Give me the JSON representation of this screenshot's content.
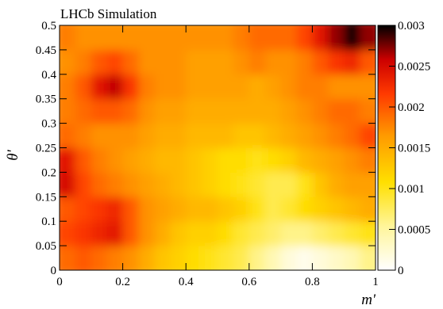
{
  "chart_data": {
    "type": "heatmap",
    "title": "LHCb Simulation",
    "xlabel": "m'",
    "ylabel": "θ'",
    "xlim": [
      0,
      1
    ],
    "ylim": [
      0,
      0.5
    ],
    "x_ticks": [
      "0",
      "0.2",
      "0.4",
      "0.6",
      "0.8",
      "1"
    ],
    "y_ticks": [
      "0",
      "0.05",
      "0.1",
      "0.15",
      "0.2",
      "0.25",
      "0.3",
      "0.35",
      "0.4",
      "0.45",
      "0.5"
    ],
    "colorbar": {
      "range": [
        0,
        0.003
      ],
      "ticks": [
        "0",
        "0.0005",
        "0.001",
        "0.0015",
        "0.002",
        "0.0025",
        "0.003"
      ]
    },
    "grid": {
      "x": [
        0.025,
        0.075,
        0.125,
        0.175,
        0.225,
        0.275,
        0.325,
        0.375,
        0.425,
        0.475,
        0.525,
        0.575,
        0.625,
        0.675,
        0.725,
        0.775,
        0.825,
        0.875,
        0.925,
        0.975
      ],
      "y": [
        0.025,
        0.075,
        0.125,
        0.175,
        0.225,
        0.275,
        0.325,
        0.375,
        0.425,
        0.475
      ],
      "z": [
        [
          0.0019,
          0.002,
          0.0019,
          0.0018,
          0.0017,
          0.0015,
          0.0013,
          0.0012,
          0.0011,
          0.001,
          0.0009,
          0.0008,
          0.0006,
          0.0004,
          0.0002,
          0.0001,
          0.0002,
          0.0003,
          0.0004,
          0.0006
        ],
        [
          0.0021,
          0.0022,
          0.0023,
          0.0024,
          0.002,
          0.0017,
          0.0015,
          0.0013,
          0.0012,
          0.0012,
          0.0011,
          0.0009,
          0.0008,
          0.0007,
          0.0006,
          0.0006,
          0.0007,
          0.0008,
          0.0009,
          0.001
        ],
        [
          0.002,
          0.0021,
          0.0022,
          0.0023,
          0.002,
          0.0017,
          0.0016,
          0.0015,
          0.0014,
          0.0014,
          0.0013,
          0.0012,
          0.001,
          0.0008,
          0.0009,
          0.0011,
          0.0012,
          0.0013,
          0.0014,
          0.0015
        ],
        [
          0.0025,
          0.0021,
          0.0019,
          0.0018,
          0.0017,
          0.0016,
          0.0015,
          0.0014,
          0.0013,
          0.0012,
          0.0011,
          0.001,
          0.0009,
          0.0008,
          0.0008,
          0.001,
          0.0013,
          0.0015,
          0.0016,
          0.0016
        ],
        [
          0.0024,
          0.002,
          0.0018,
          0.0017,
          0.0016,
          0.0015,
          0.0014,
          0.0014,
          0.0013,
          0.0012,
          0.0011,
          0.0011,
          0.001,
          0.0011,
          0.0012,
          0.0014,
          0.0015,
          0.0016,
          0.0017,
          0.0018
        ],
        [
          0.0019,
          0.0018,
          0.0017,
          0.0017,
          0.0017,
          0.0016,
          0.0015,
          0.0015,
          0.0014,
          0.0014,
          0.0014,
          0.0013,
          0.0013,
          0.0014,
          0.0015,
          0.0016,
          0.0017,
          0.0018,
          0.0019,
          0.0021
        ],
        [
          0.0018,
          0.0019,
          0.002,
          0.002,
          0.0019,
          0.0017,
          0.0016,
          0.0016,
          0.0015,
          0.0015,
          0.0015,
          0.0015,
          0.0015,
          0.0015,
          0.0016,
          0.0017,
          0.0018,
          0.0019,
          0.0019,
          0.0018
        ],
        [
          0.0018,
          0.002,
          0.0024,
          0.0026,
          0.0022,
          0.0018,
          0.0017,
          0.0017,
          0.0016,
          0.0016,
          0.0016,
          0.0016,
          0.0015,
          0.0016,
          0.0017,
          0.0018,
          0.0018,
          0.0017,
          0.0017,
          0.0017
        ],
        [
          0.0017,
          0.0018,
          0.002,
          0.0021,
          0.0019,
          0.0017,
          0.0017,
          0.0017,
          0.0016,
          0.0016,
          0.0016,
          0.0017,
          0.0018,
          0.0017,
          0.0017,
          0.0018,
          0.002,
          0.0022,
          0.0023,
          0.002
        ],
        [
          0.0018,
          0.0017,
          0.0017,
          0.0017,
          0.0017,
          0.0017,
          0.0017,
          0.0017,
          0.0017,
          0.0017,
          0.0017,
          0.0018,
          0.0019,
          0.0019,
          0.0019,
          0.0021,
          0.0024,
          0.0027,
          0.003,
          0.0027
        ]
      ]
    }
  }
}
